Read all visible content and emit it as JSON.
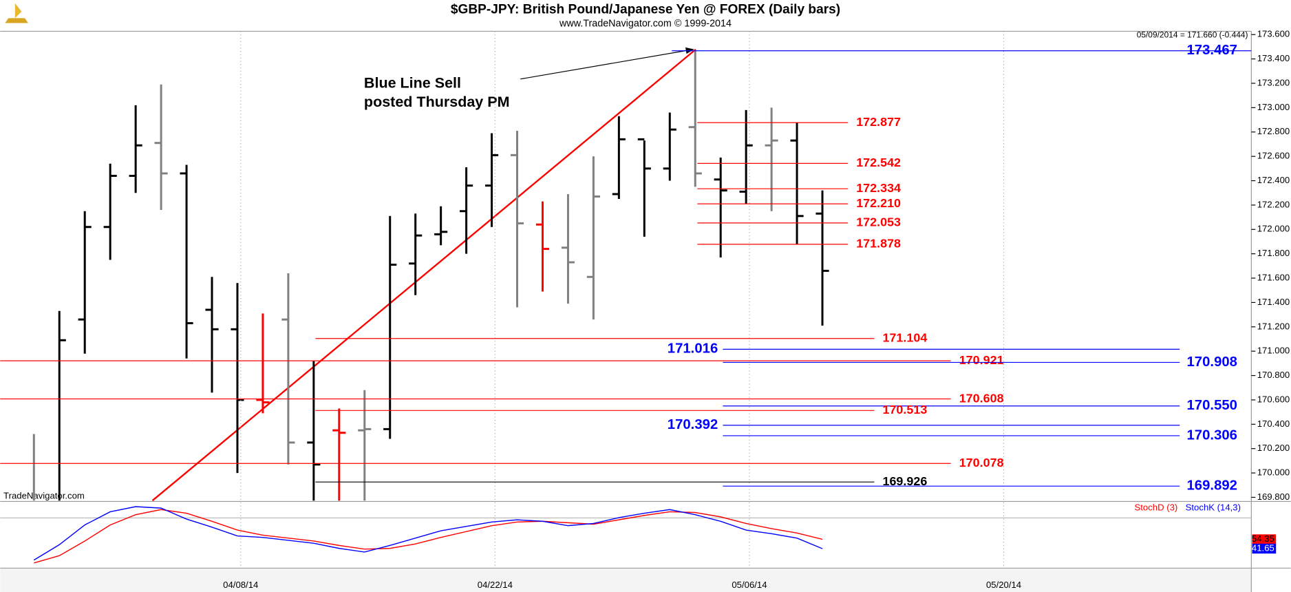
{
  "chart_data": [
    {
      "type": "ohlc",
      "title": "$GBP-JPY:  British Pound/Japanese Yen @ FOREX  (Daily bars)",
      "subtitle": "www.TradeNavigator.com © 1999-2014",
      "info": "05/09/2014 = 171.660 (-0.444)",
      "watermark": "TradeNavigator.com",
      "annotation": [
        "Blue Line Sell",
        "posted Thursday PM"
      ],
      "xticks": [
        "04/08/14",
        "04/22/14",
        "05/06/14",
        "05/20/14"
      ],
      "open": [
        169.6,
        169.7,
        171.26,
        172.02,
        172.44,
        172.71,
        172.46,
        171.34,
        171.18,
        170.6,
        171.26,
        170.25,
        170.35,
        170.35,
        170.36,
        171.72,
        171.96,
        172.15,
        172.36,
        172.61,
        172.04,
        171.85,
        171.61,
        172.29,
        172.74,
        172.5,
        172.84,
        172.41,
        172.31,
        172.69,
        172.73,
        172.13
      ],
      "high": [
        170.32,
        171.33,
        172.15,
        172.54,
        173.02,
        173.19,
        172.53,
        171.61,
        171.56,
        171.31,
        171.64,
        170.92,
        170.53,
        170.68,
        172.11,
        172.13,
        172.19,
        172.51,
        172.79,
        172.81,
        172.23,
        172.29,
        172.6,
        172.93,
        172.73,
        172.96,
        173.47,
        172.59,
        172.98,
        173.0,
        172.88,
        172.32
      ],
      "low": [
        169.5,
        169.5,
        170.98,
        171.75,
        172.3,
        172.16,
        170.94,
        170.66,
        170.0,
        170.49,
        170.07,
        169.6,
        169.6,
        169.6,
        170.28,
        171.46,
        171.87,
        171.8,
        172.02,
        171.36,
        171.49,
        171.39,
        171.26,
        172.25,
        171.94,
        172.4,
        172.35,
        171.77,
        172.21,
        172.15,
        171.88,
        171.21
      ],
      "close": [
        169.7,
        171.09,
        172.02,
        172.44,
        172.69,
        172.46,
        171.23,
        171.18,
        170.6,
        170.58,
        170.25,
        170.07,
        170.33,
        170.36,
        171.71,
        171.95,
        171.98,
        172.36,
        172.61,
        172.05,
        171.84,
        171.73,
        172.27,
        172.74,
        172.5,
        172.82,
        172.46,
        172.32,
        172.69,
        172.73,
        172.11,
        171.66
      ],
      "colors": [
        "#808080",
        "#000000",
        "#000000",
        "#000000",
        "#000000",
        "#808080",
        "#000000",
        "#000000",
        "#000000",
        "#ff0000",
        "#808080",
        "#000000",
        "#ff0000",
        "#808080",
        "#000000",
        "#000000",
        "#000000",
        "#000000",
        "#000000",
        "#808080",
        "#ff0000",
        "#808080",
        "#808080",
        "#000000",
        "#000000",
        "#000000",
        "#808080",
        "#000000",
        "#000000",
        "#808080",
        "#000000",
        "#000000"
      ],
      "levels": [
        {
          "value": 173.467,
          "label": "173.467",
          "color": "#0000ff"
        },
        {
          "value": 172.877,
          "label": "172.877",
          "color": "#ff0000"
        },
        {
          "value": 172.542,
          "label": "172.542",
          "color": "#ff0000"
        },
        {
          "value": 172.334,
          "label": "172.334",
          "color": "#ff0000"
        },
        {
          "value": 172.21,
          "label": "172.210",
          "color": "#ff0000"
        },
        {
          "value": 172.053,
          "label": "172.053",
          "color": "#ff0000"
        },
        {
          "value": 171.878,
          "label": "171.878",
          "color": "#ff0000"
        },
        {
          "value": 171.104,
          "label": "171.104",
          "color": "#ff0000"
        },
        {
          "value": 171.016,
          "label": "171.016",
          "color": "#0000ff"
        },
        {
          "value": 170.921,
          "label": "170.921",
          "color": "#ff0000"
        },
        {
          "value": 170.908,
          "label": "170.908",
          "color": "#0000ff"
        },
        {
          "value": 170.608,
          "label": "170.608",
          "color": "#ff0000"
        },
        {
          "value": 170.55,
          "label": "170.550",
          "color": "#0000ff"
        },
        {
          "value": 170.513,
          "label": "170.513",
          "color": "#ff0000"
        },
        {
          "value": 170.392,
          "label": "170.392",
          "color": "#0000ff"
        },
        {
          "value": 170.306,
          "label": "170.306",
          "color": "#0000ff"
        },
        {
          "value": 170.078,
          "label": "170.078",
          "color": "#ff0000"
        },
        {
          "value": 169.926,
          "label": "169.926",
          "color": "#000000"
        },
        {
          "value": 169.892,
          "label": "169.892",
          "color": "#0000ff"
        }
      ],
      "ylim": [
        169.773,
        173.627
      ],
      "yticks": [
        {
          "value": 169.8,
          "label": "169.800"
        },
        {
          "value": 170,
          "label": "170.000"
        },
        {
          "value": 170.2,
          "label": "170.200"
        },
        {
          "value": 170.4,
          "label": "170.400"
        },
        {
          "value": 170.6,
          "label": "170.600"
        },
        {
          "value": 170.8,
          "label": "170.800"
        },
        {
          "value": 171,
          "label": "171.000"
        },
        {
          "value": 171.2,
          "label": "171.200"
        },
        {
          "value": 171.4,
          "label": "171.400"
        },
        {
          "value": 171.6,
          "label": "171.600"
        },
        {
          "value": 171.8,
          "label": "171.800"
        },
        {
          "value": 172,
          "label": "172.000"
        },
        {
          "value": 172.2,
          "label": "172.200"
        },
        {
          "value": 172.4,
          "label": "172.400"
        },
        {
          "value": 172.6,
          "label": "172.600"
        },
        {
          "value": 172.8,
          "label": "172.800"
        },
        {
          "value": 173,
          "label": "173.000"
        },
        {
          "value": 173.2,
          "label": "173.200"
        },
        {
          "value": 173.4,
          "label": "173.400"
        },
        {
          "value": 173.6,
          "label": "173.600"
        }
      ]
    },
    {
      "type": "line",
      "ylim": [
        15,
        105
      ],
      "series": [
        {
          "name": "StochD (3)",
          "color": "#ff0000",
          "values": [
            22,
            32,
            52,
            74,
            88,
            95,
            90,
            79,
            67,
            60,
            56,
            52,
            46,
            41,
            42,
            48,
            57,
            65,
            73,
            78,
            79,
            77,
            75,
            81,
            87,
            92,
            91,
            85,
            76,
            69,
            63,
            54.35
          ]
        },
        {
          "name": "StochK (14,3)",
          "color": "#0000ff",
          "values": [
            26,
            47,
            74,
            92,
            99,
            97,
            82,
            71,
            59,
            57,
            53,
            49,
            42,
            37,
            46,
            56,
            66,
            72,
            78,
            81,
            79,
            73,
            76,
            84,
            90,
            95,
            88,
            79,
            67,
            62,
            56,
            41.65
          ]
        }
      ]
    }
  ]
}
